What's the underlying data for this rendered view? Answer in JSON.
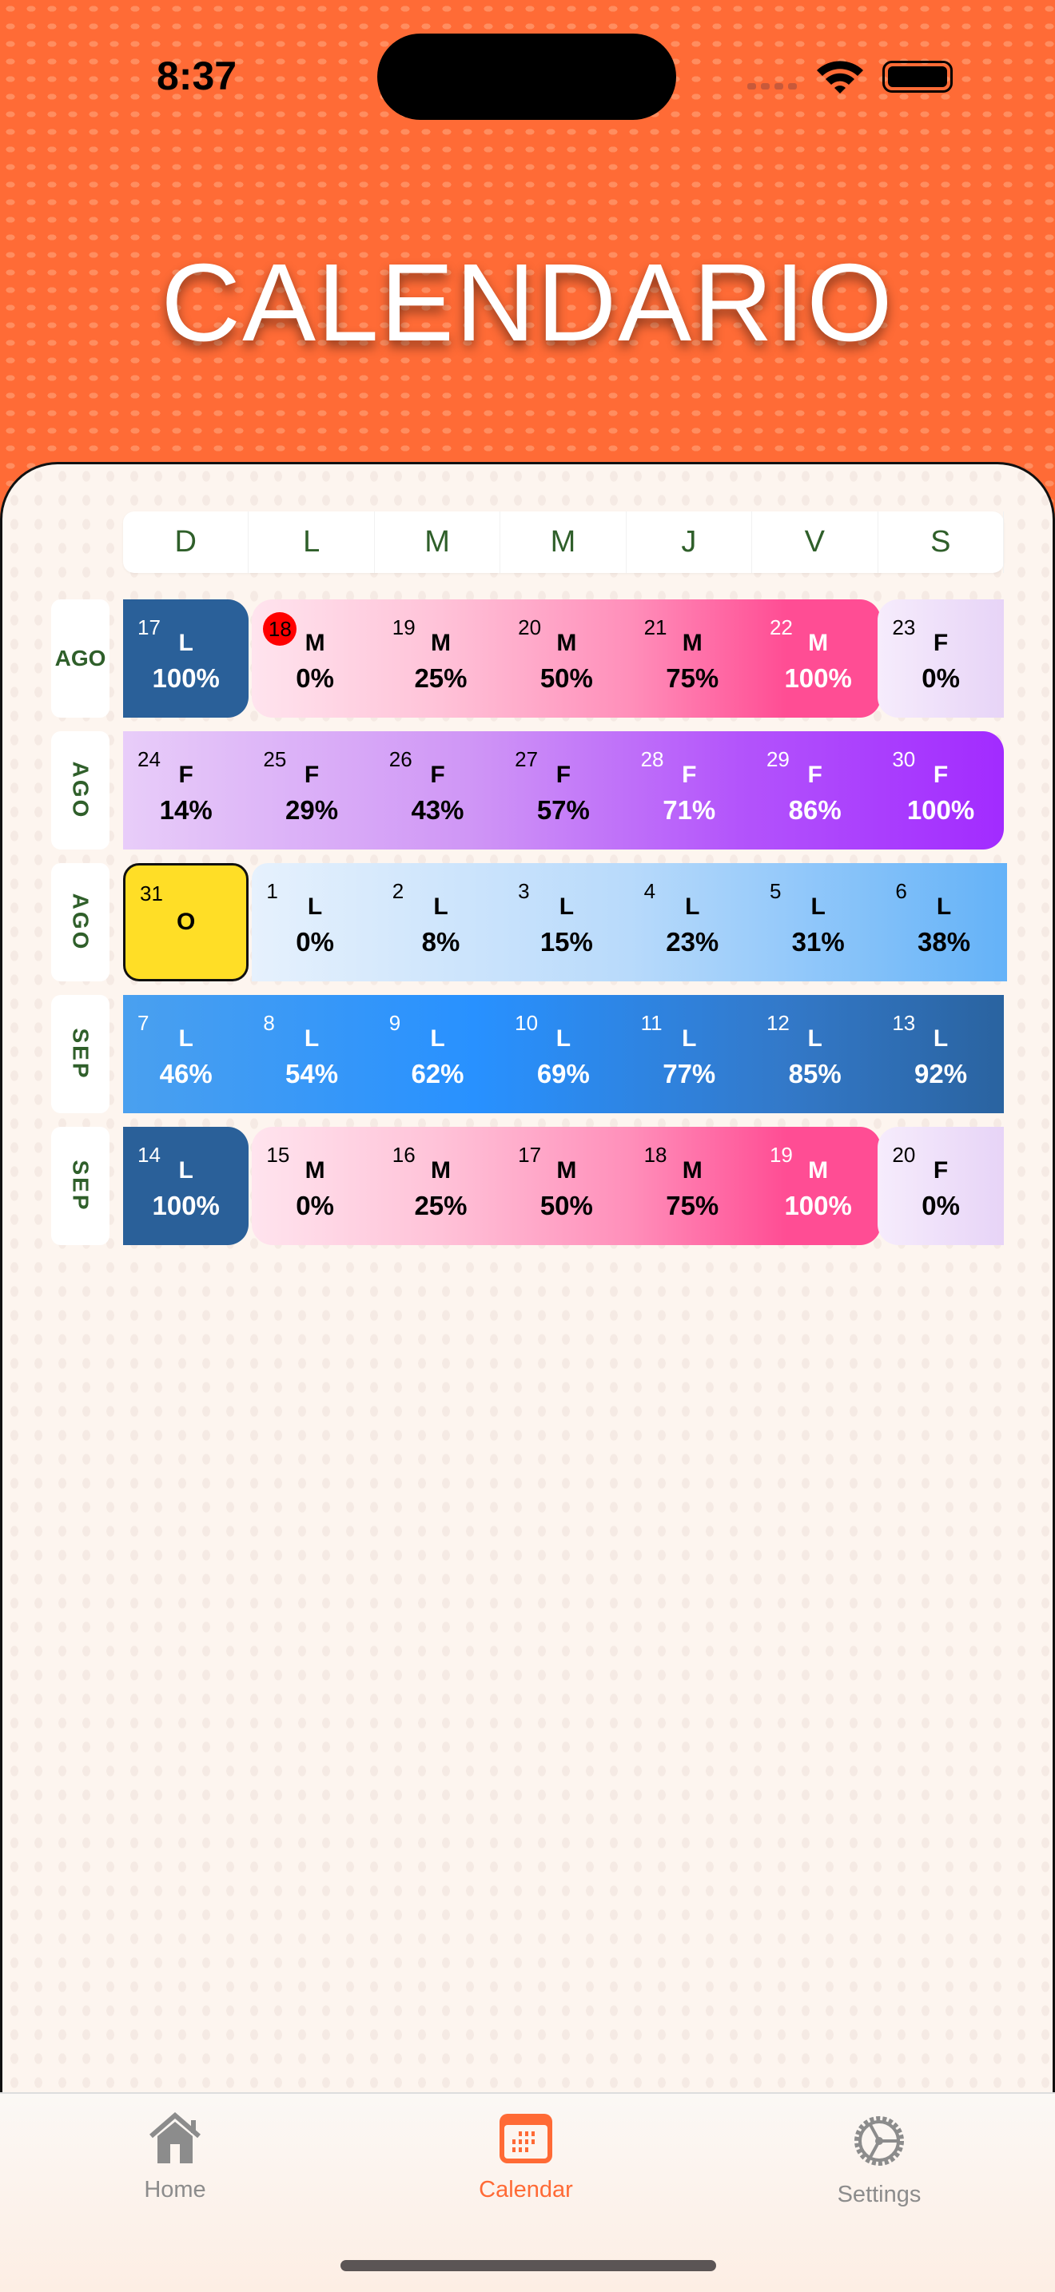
{
  "status": {
    "time": "8:37"
  },
  "title": "CALENDARIO",
  "weekdays": [
    "D",
    "L",
    "M",
    "M",
    "J",
    "V",
    "S"
  ],
  "rows": [
    {
      "month": "AGO",
      "vertical": false,
      "segments": [
        {
          "style": "navy",
          "cells": [
            {
              "day": "17",
              "code": "L",
              "pct": "100%"
            }
          ]
        },
        {
          "style": "pink",
          "cells": [
            {
              "day": "18",
              "code": "M",
              "pct": "0%",
              "today": true
            },
            {
              "day": "19",
              "code": "M",
              "pct": "25%"
            },
            {
              "day": "20",
              "code": "M",
              "pct": "50%"
            },
            {
              "day": "21",
              "code": "M",
              "pct": "75%"
            },
            {
              "day": "22",
              "code": "M",
              "pct": "100%"
            }
          ]
        },
        {
          "style": "lavender",
          "cells": [
            {
              "day": "23",
              "code": "F",
              "pct": "0%"
            }
          ]
        }
      ]
    },
    {
      "month": "AGO",
      "vertical": true,
      "segments": [
        {
          "style": "purple",
          "cells": [
            {
              "day": "24",
              "code": "F",
              "pct": "14%"
            },
            {
              "day": "25",
              "code": "F",
              "pct": "29%"
            },
            {
              "day": "26",
              "code": "F",
              "pct": "43%"
            },
            {
              "day": "27",
              "code": "F",
              "pct": "57%"
            },
            {
              "day": "28",
              "code": "F",
              "pct": "71%"
            },
            {
              "day": "29",
              "code": "F",
              "pct": "86%"
            },
            {
              "day": "30",
              "code": "F",
              "pct": "100%"
            }
          ]
        }
      ]
    },
    {
      "month": "AGO",
      "vertical": true,
      "segments": [
        {
          "style": "yellow",
          "cells": [
            {
              "day": "31",
              "code": "O",
              "pct": ""
            }
          ]
        },
        {
          "style": "lightblue",
          "cells": [
            {
              "day": "1",
              "code": "L",
              "pct": "0%"
            },
            {
              "day": "2",
              "code": "L",
              "pct": "8%"
            },
            {
              "day": "3",
              "code": "L",
              "pct": "15%"
            },
            {
              "day": "4",
              "code": "L",
              "pct": "23%"
            },
            {
              "day": "5",
              "code": "L",
              "pct": "31%"
            },
            {
              "day": "6",
              "code": "L",
              "pct": "38%"
            }
          ]
        }
      ]
    },
    {
      "month": "SEP",
      "vertical": true,
      "segments": [
        {
          "style": "blue",
          "cells": [
            {
              "day": "7",
              "code": "L",
              "pct": "46%"
            },
            {
              "day": "8",
              "code": "L",
              "pct": "54%"
            },
            {
              "day": "9",
              "code": "L",
              "pct": "62%"
            },
            {
              "day": "10",
              "code": "L",
              "pct": "69%"
            },
            {
              "day": "11",
              "code": "L",
              "pct": "77%"
            },
            {
              "day": "12",
              "code": "L",
              "pct": "85%"
            },
            {
              "day": "13",
              "code": "L",
              "pct": "92%"
            }
          ]
        }
      ]
    },
    {
      "month": "SEP",
      "vertical": true,
      "segments": [
        {
          "style": "navy",
          "cells": [
            {
              "day": "14",
              "code": "L",
              "pct": "100%"
            }
          ]
        },
        {
          "style": "pink",
          "cells": [
            {
              "day": "15",
              "code": "M",
              "pct": "0%"
            },
            {
              "day": "16",
              "code": "M",
              "pct": "25%"
            },
            {
              "day": "17",
              "code": "M",
              "pct": "50%"
            },
            {
              "day": "18",
              "code": "M",
              "pct": "75%"
            },
            {
              "day": "19",
              "code": "M",
              "pct": "100%"
            }
          ]
        },
        {
          "style": "lavender",
          "cells": [
            {
              "day": "20",
              "code": "F",
              "pct": "0%"
            }
          ]
        }
      ]
    }
  ],
  "tabs": [
    {
      "label": "Home",
      "icon": "home-icon"
    },
    {
      "label": "Calendar",
      "icon": "calendar-icon",
      "active": true
    },
    {
      "label": "Settings",
      "icon": "gear-icon"
    }
  ],
  "colors": {
    "accent": "#ff6a35",
    "month_text": "#2f5f2a",
    "navy": "#2a6099",
    "pink_end": "#ff4d94",
    "purple_end": "#a22bff",
    "yellow": "#ffde26",
    "blue": "#2891ff"
  }
}
